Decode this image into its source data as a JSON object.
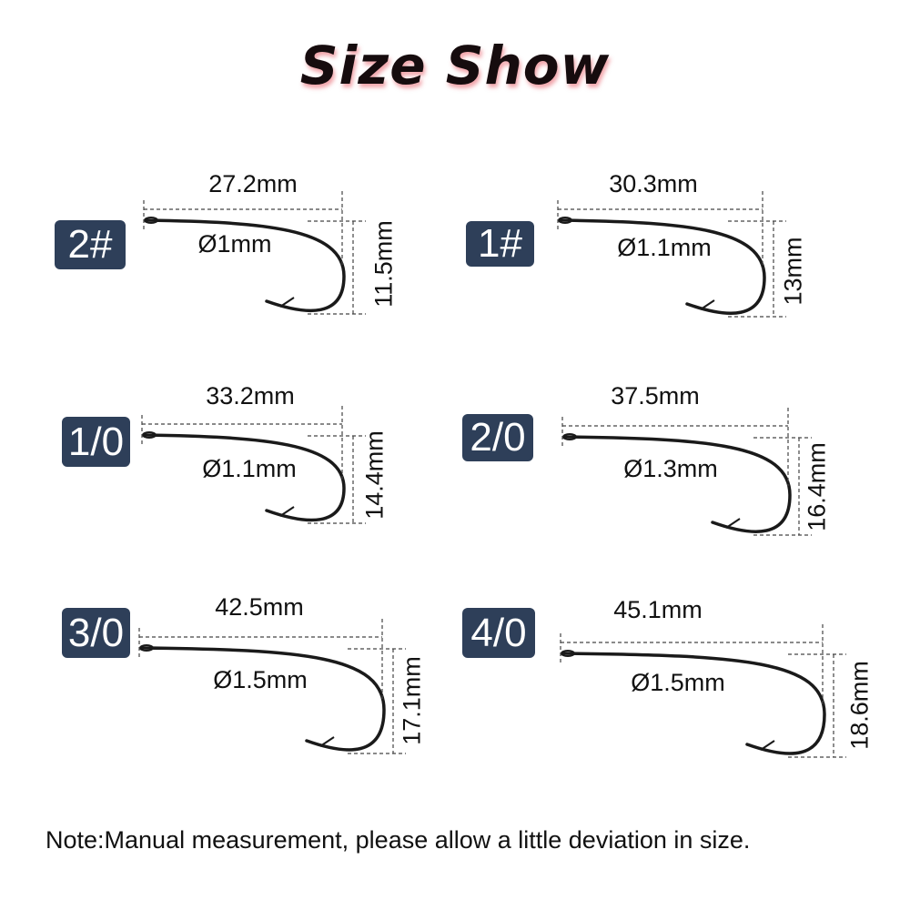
{
  "title": "Size Show",
  "badge_color": "#2e3f59",
  "hooks": [
    {
      "size": "2#",
      "length": "27.2mm",
      "diameter": "Ø1mm",
      "height": "11.5mm"
    },
    {
      "size": "1#",
      "length": "30.3mm",
      "diameter": "Ø1.1mm",
      "height": "13mm"
    },
    {
      "size": "1/0",
      "length": "33.2mm",
      "diameter": "Ø1.1mm",
      "height": "14.4mm"
    },
    {
      "size": "2/0",
      "length": "37.5mm",
      "diameter": "Ø1.3mm",
      "height": "16.4mm"
    },
    {
      "size": "3/0",
      "length": "42.5mm",
      "diameter": "Ø1.5mm",
      "height": "17.1mm"
    },
    {
      "size": "4/0",
      "length": "45.1mm",
      "diameter": "Ø1.5mm",
      "height": "18.6mm"
    }
  ],
  "note": "Note:Manual measurement, please allow a little deviation in size."
}
